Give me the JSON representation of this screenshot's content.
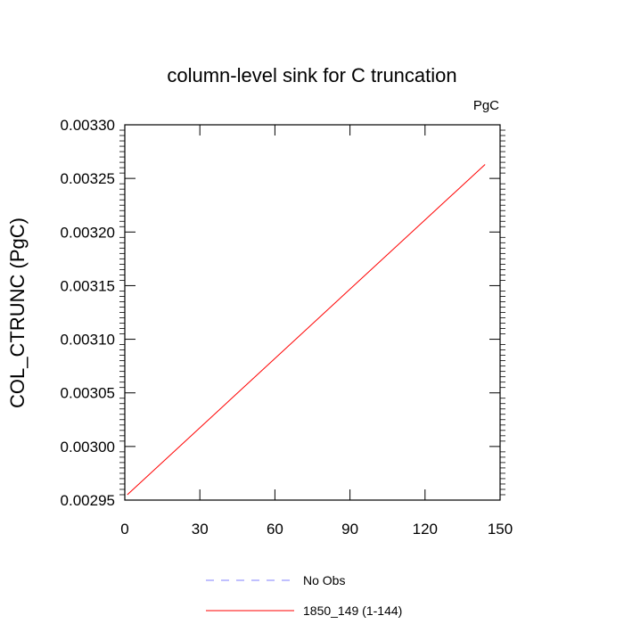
{
  "chart_data": {
    "type": "line",
    "title": "column-level sink for C truncation",
    "units_label": "PgC",
    "ylabel": "COL_CTRUNC  (PgC)",
    "xlabel": "",
    "xlim": [
      0,
      150
    ],
    "ylim": [
      0.00295,
      0.0033
    ],
    "x_ticks": [
      0,
      30,
      60,
      90,
      120,
      150
    ],
    "x_tick_labels": [
      "0",
      "30",
      "60",
      "90",
      "120",
      "150"
    ],
    "y_ticks": [
      0.00295,
      0.003,
      0.00305,
      0.0031,
      0.00315,
      0.0032,
      0.00325,
      0.0033
    ],
    "y_tick_labels": [
      "0.00295",
      "0.00300",
      "0.00305",
      "0.00310",
      "0.00315",
      "0.00320",
      "0.00325",
      "0.00330"
    ],
    "grid": false,
    "legend_position": "bottom",
    "series": [
      {
        "name": "1850_149 (1-144)",
        "color": "#ff0000",
        "style": "solid",
        "x": [
          1,
          144
        ],
        "values": [
          0.002955,
          0.003263
        ]
      }
    ],
    "legend": [
      {
        "label": "No Obs",
        "color": "#8080ff",
        "style": "dashed"
      },
      {
        "label": "1850_149 (1-144)",
        "color": "#ff0000",
        "style": "solid"
      }
    ]
  }
}
